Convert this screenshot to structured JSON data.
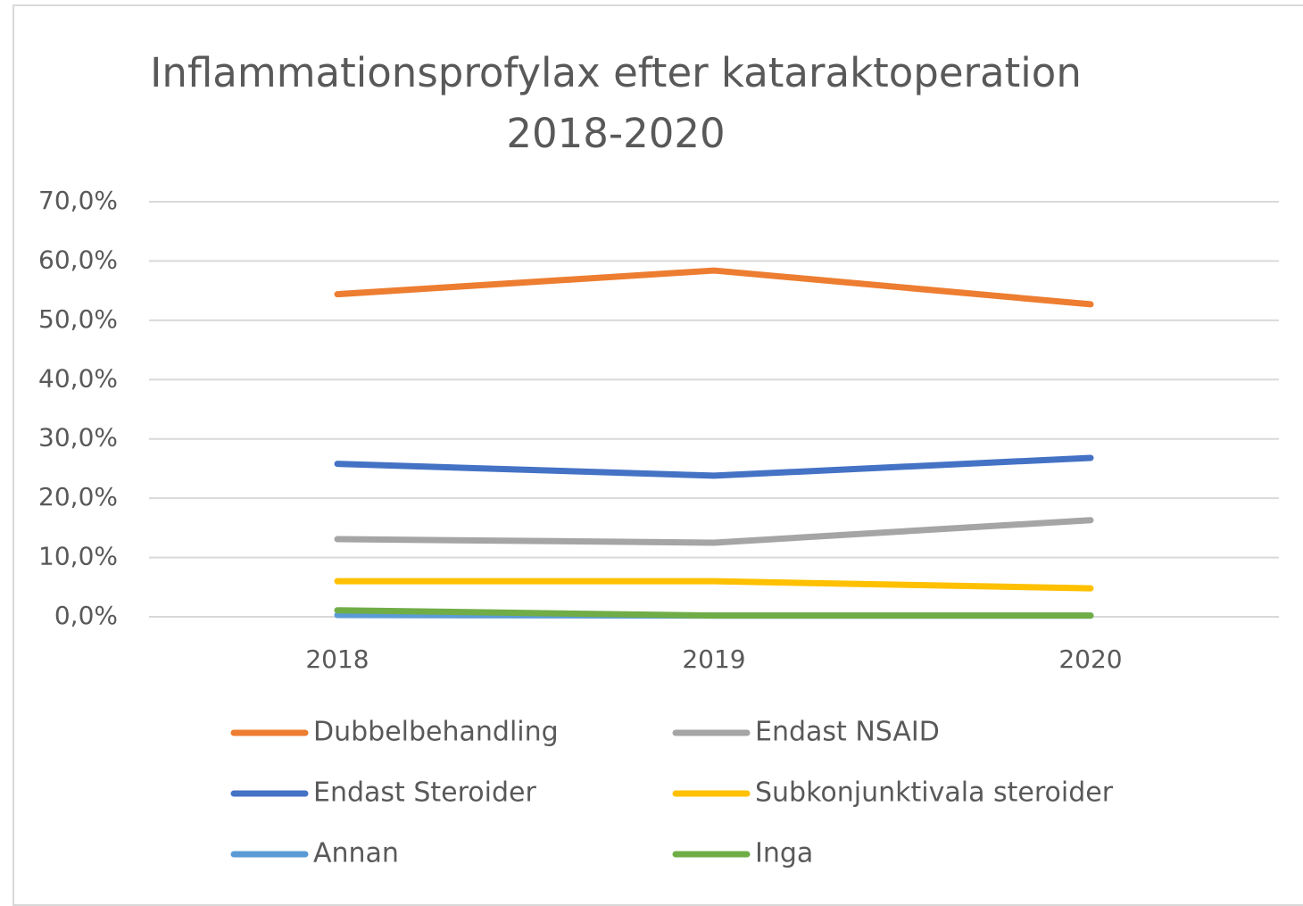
{
  "chart_data": {
    "type": "line",
    "title": "Inflammationsprofylax efter kataraktoperation 2018-2020",
    "categories": [
      "2018",
      "2019",
      "2020"
    ],
    "series": [
      {
        "name": "Dubbelbehandling",
        "color": "#ed7d31",
        "values": [
          54.4,
          58.4,
          52.7
        ]
      },
      {
        "name": "Endast NSAID",
        "color": "#a5a5a5",
        "values": [
          13.1,
          12.5,
          16.3
        ]
      },
      {
        "name": "Endast Steroider",
        "color": "#4472c4",
        "values": [
          25.8,
          23.8,
          26.8
        ]
      },
      {
        "name": "Subkonjunktivala steroider",
        "color": "#ffc000",
        "values": [
          6.0,
          6.0,
          4.8
        ]
      },
      {
        "name": "Annan",
        "color": "#5b9bd5",
        "values": [
          0.3,
          0.2,
          0.2
        ]
      },
      {
        "name": "Inga",
        "color": "#70ad47",
        "values": [
          1.1,
          0.2,
          0.2
        ]
      }
    ],
    "ylim": [
      0,
      70
    ],
    "yticks": [
      {
        "value": 0,
        "label": "0,0%"
      },
      {
        "value": 10,
        "label": "10,0%"
      },
      {
        "value": 20,
        "label": "20,0%"
      },
      {
        "value": 30,
        "label": "30,0%"
      },
      {
        "value": 40,
        "label": "40,0%"
      },
      {
        "value": 50,
        "label": "50,0%"
      },
      {
        "value": 60,
        "label": "60,0%"
      },
      {
        "value": 70,
        "label": "70,0%"
      }
    ],
    "grid": true,
    "legend": "bottom"
  }
}
